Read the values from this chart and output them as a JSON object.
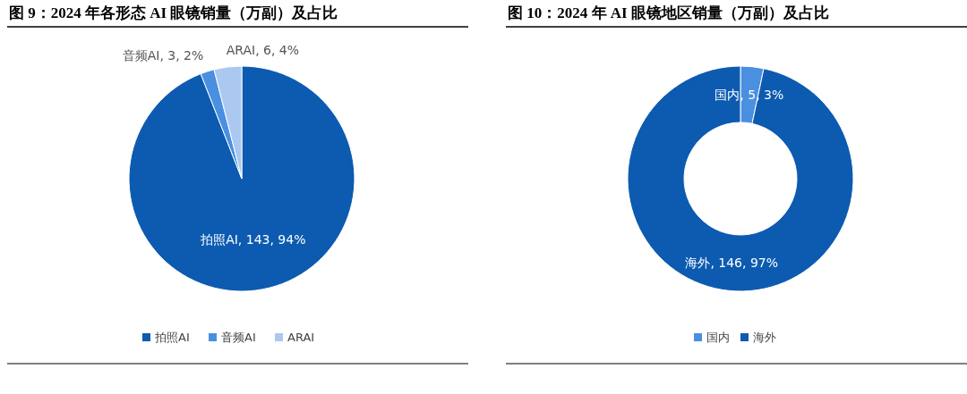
{
  "chart_data": [
    {
      "type": "pie",
      "title": "图 9：2024 年各形态 AI 眼镜销量（万副）及占比",
      "categories": [
        "拍照AI",
        "音频AI",
        "ARAI"
      ],
      "values": [
        143,
        3,
        6
      ],
      "colors": [
        "#0c5bb0",
        "#4a8fe0",
        "#aac8f0"
      ],
      "value_labels": [
        "拍照AI, 143, 94%",
        "音频AI, 3, 2%",
        "ARAI, 6, 4%"
      ],
      "legend": "bottom"
    },
    {
      "type": "donut",
      "title": "图 10：2024 年 AI 眼镜地区销量（万副）及占比",
      "categories": [
        "国内",
        "海外"
      ],
      "values": [
        5,
        146
      ],
      "colors": [
        "#4a8fe0",
        "#0c5bb0"
      ],
      "value_labels": [
        "国内, 5, 3%",
        "海外, 146, 97%"
      ],
      "legend": "bottom"
    }
  ]
}
